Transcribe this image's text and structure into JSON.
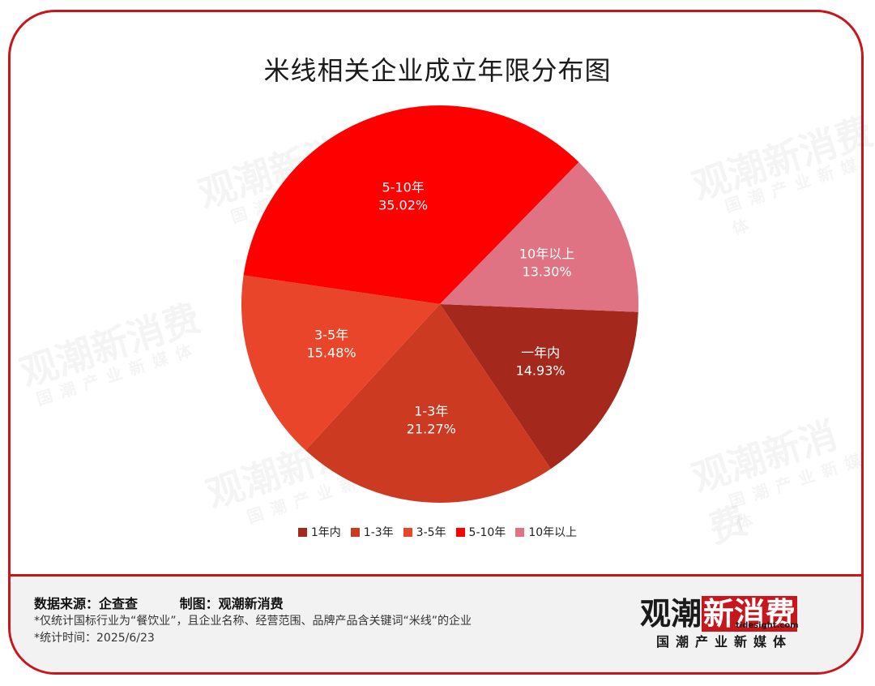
{
  "title": "米线相关企业成立年限分布图",
  "chart_data": {
    "type": "pie",
    "title": "米线相关企业成立年限分布图",
    "slices": [
      {
        "name": "1年内",
        "slice_label": "一年内",
        "value": 14.93,
        "value_label": "14.93%",
        "color": "#a4281b"
      },
      {
        "name": "1-3年",
        "slice_label": "1-3年",
        "value": 21.27,
        "value_label": "21.27%",
        "color": "#cc3a22"
      },
      {
        "name": "3-5年",
        "slice_label": "3-5年",
        "value": 15.48,
        "value_label": "15.48%",
        "color": "#e8452a"
      },
      {
        "name": "5-10年",
        "slice_label": "5-10年",
        "value": 35.02,
        "value_label": "35.02%",
        "color": "#fe0000"
      },
      {
        "name": "10年以上",
        "slice_label": "10年以上",
        "value": 13.3,
        "value_label": "13.30%",
        "color": "#e07383"
      }
    ],
    "legend_position": "bottom"
  },
  "footer": {
    "source_label": "数据来源：企查查",
    "maker_label": "制图：观潮新消费",
    "note1": "*仅统计国标行业为“餐饮业”，且企业名称、经营范围、品牌产品含关键词“米线”的企业",
    "note2": "*统计时间：2025/6/23"
  },
  "logo": {
    "main": "观潮新消费",
    "part1": "观潮",
    "part2": "新消费",
    "site": "tidesight.com",
    "tagline": "国潮产业新媒体"
  },
  "colors": {
    "brand_red": "#c8161d"
  }
}
